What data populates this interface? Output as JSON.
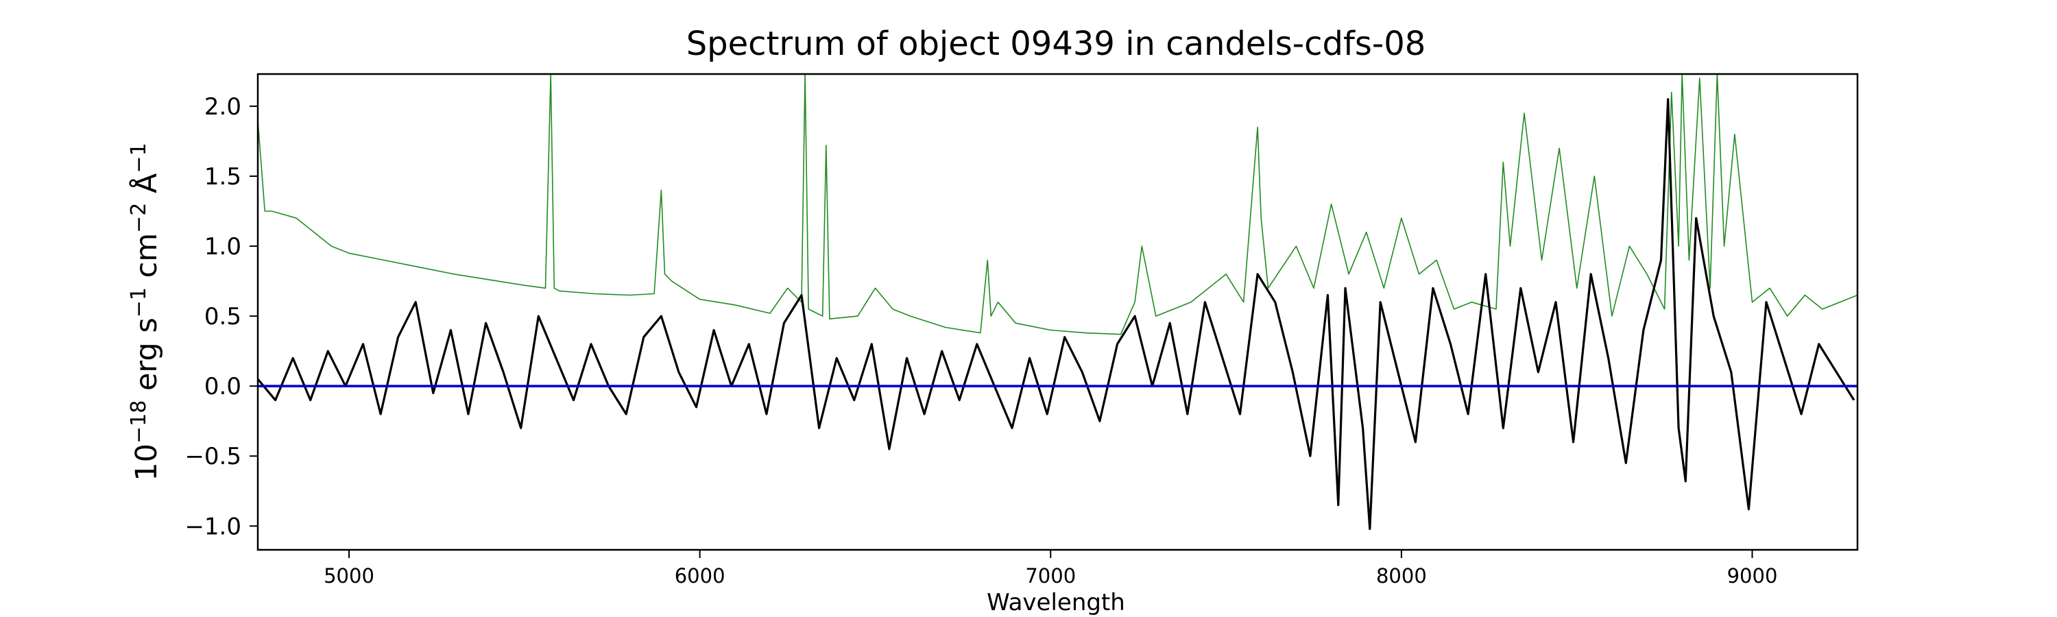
{
  "chart_data": {
    "type": "line",
    "title": "Spectrum of object 09439 in candels-cdfs-08",
    "xlabel": "Wavelength",
    "ylabel": {
      "base": "10",
      "exp_base": "−18",
      "erg": " erg s",
      "exp_s": "−1",
      "cm": " cm",
      "exp_cm": "−2",
      "ang": " Å",
      "exp_ang": "−1"
    },
    "xlim": [
      4740,
      9300
    ],
    "ylim": [
      -1.17,
      2.23
    ],
    "xticks": [
      5000,
      6000,
      7000,
      8000,
      9000
    ],
    "xtick_labels": [
      "5000",
      "6000",
      "7000",
      "8000",
      "9000"
    ],
    "yticks": [
      -1.0,
      -0.5,
      0.0,
      0.5,
      1.0,
      1.5,
      2.0
    ],
    "ytick_labels": [
      "−1.0",
      "−0.5",
      "0.0",
      "0.5",
      "1.0",
      "1.5",
      "2.0"
    ],
    "grid": false,
    "colors": {
      "flux": "#000000",
      "error": "#228b22",
      "zero": "#0000cc"
    },
    "series": [
      {
        "key": "error",
        "x": [
          4740,
          4760,
          4780,
          4850,
          4900,
          4950,
          5000,
          5100,
          5200,
          5300,
          5400,
          5500,
          5560,
          5575,
          5585,
          5600,
          5700,
          5800,
          5870,
          5890,
          5900,
          5920,
          6000,
          6100,
          6200,
          6250,
          6290,
          6300,
          6310,
          6350,
          6360,
          6370,
          6450,
          6500,
          6550,
          6600,
          6700,
          6800,
          6820,
          6830,
          6850,
          6900,
          7000,
          7100,
          7200,
          7240,
          7260,
          7300,
          7400,
          7500,
          7550,
          7590,
          7600,
          7620,
          7700,
          7750,
          7800,
          7850,
          7900,
          7950,
          8000,
          8050,
          8100,
          8150,
          8200,
          8270,
          8290,
          8310,
          8350,
          8400,
          8450,
          8500,
          8550,
          8600,
          8650,
          8700,
          8750,
          8770,
          8790,
          8800,
          8820,
          8850,
          8880,
          8900,
          8920,
          8950,
          9000,
          9050,
          9100,
          9150,
          9200,
          9250,
          9300
        ],
        "y": [
          1.9,
          1.25,
          1.25,
          1.2,
          1.1,
          1.0,
          0.95,
          0.9,
          0.85,
          0.8,
          0.76,
          0.72,
          0.7,
          2.23,
          0.7,
          0.68,
          0.66,
          0.65,
          0.66,
          1.4,
          0.8,
          0.75,
          0.62,
          0.58,
          0.52,
          0.7,
          0.6,
          2.23,
          0.55,
          0.5,
          1.72,
          0.48,
          0.5,
          0.7,
          0.55,
          0.5,
          0.42,
          0.38,
          0.9,
          0.5,
          0.6,
          0.45,
          0.4,
          0.38,
          0.37,
          0.6,
          1.0,
          0.5,
          0.6,
          0.8,
          0.6,
          1.85,
          1.2,
          0.7,
          1.0,
          0.7,
          1.3,
          0.8,
          1.1,
          0.7,
          1.2,
          0.8,
          0.9,
          0.55,
          0.6,
          0.55,
          1.6,
          1.0,
          1.95,
          0.9,
          1.7,
          0.7,
          1.5,
          0.5,
          1.0,
          0.8,
          0.55,
          2.1,
          1.0,
          2.23,
          0.9,
          2.2,
          0.7,
          2.23,
          1.0,
          1.8,
          0.6,
          0.7,
          0.5,
          0.65,
          0.55,
          0.6,
          0.65
        ]
      },
      {
        "key": "flux",
        "x": [
          4740,
          4790,
          4840,
          4890,
          4940,
          4990,
          5040,
          5090,
          5140,
          5190,
          5240,
          5290,
          5340,
          5390,
          5440,
          5490,
          5540,
          5590,
          5640,
          5690,
          5740,
          5790,
          5840,
          5890,
          5940,
          5990,
          6040,
          6090,
          6140,
          6190,
          6240,
          6290,
          6340,
          6390,
          6440,
          6490,
          6540,
          6590,
          6640,
          6690,
          6740,
          6790,
          6840,
          6890,
          6940,
          6990,
          7040,
          7090,
          7140,
          7190,
          7240,
          7290,
          7340,
          7390,
          7440,
          7490,
          7540,
          7590,
          7640,
          7690,
          7740,
          7790,
          7820,
          7840,
          7890,
          7910,
          7940,
          7990,
          8040,
          8090,
          8140,
          8190,
          8240,
          8290,
          8340,
          8390,
          8440,
          8490,
          8540,
          8590,
          8640,
          8690,
          8740,
          8760,
          8790,
          8810,
          8840,
          8890,
          8940,
          8990,
          9040,
          9090,
          9140,
          9190,
          9240,
          9290
        ],
        "y": [
          0.05,
          -0.1,
          0.2,
          -0.1,
          0.25,
          0.0,
          0.3,
          -0.2,
          0.35,
          0.6,
          -0.05,
          0.4,
          -0.2,
          0.45,
          0.1,
          -0.3,
          0.5,
          0.2,
          -0.1,
          0.3,
          0.0,
          -0.2,
          0.35,
          0.5,
          0.1,
          -0.15,
          0.4,
          0.0,
          0.3,
          -0.2,
          0.45,
          0.65,
          -0.3,
          0.2,
          -0.1,
          0.3,
          -0.45,
          0.2,
          -0.2,
          0.25,
          -0.1,
          0.3,
          0.0,
          -0.3,
          0.2,
          -0.2,
          0.35,
          0.1,
          -0.25,
          0.3,
          0.5,
          0.0,
          0.45,
          -0.2,
          0.6,
          0.2,
          -0.2,
          0.8,
          0.6,
          0.1,
          -0.5,
          0.65,
          -0.85,
          0.7,
          -0.3,
          -1.02,
          0.6,
          0.1,
          -0.4,
          0.7,
          0.3,
          -0.2,
          0.8,
          -0.3,
          0.7,
          0.1,
          0.6,
          -0.4,
          0.8,
          0.2,
          -0.55,
          0.4,
          0.9,
          2.05,
          -0.3,
          -0.68,
          1.2,
          0.5,
          0.1,
          -0.88,
          0.6,
          0.2,
          -0.2,
          0.3,
          0.1,
          -0.1
        ]
      },
      {
        "key": "zero",
        "x": [
          4740,
          9300
        ],
        "y": [
          0,
          0
        ]
      }
    ]
  }
}
